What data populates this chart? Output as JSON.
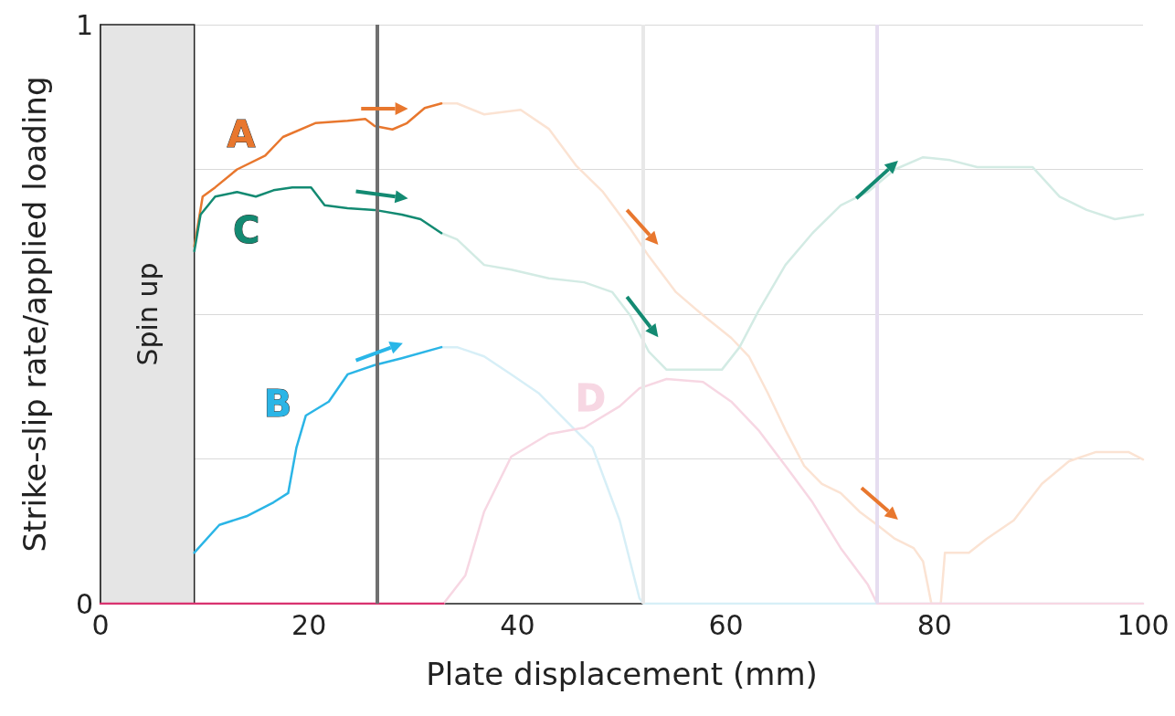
{
  "chart_data": {
    "type": "line",
    "xlabel": "Plate displacement (mm)",
    "ylabel": "Strike-slip rate/applied loading",
    "xlim": [
      0,
      100
    ],
    "xticks": [
      0,
      20,
      40,
      60,
      80,
      100
    ],
    "ylim": [
      0,
      1
    ],
    "yticks": [
      0,
      {
        "value": 0.25,
        "label": null
      },
      {
        "value": 0.5,
        "label": null
      },
      {
        "value": 0.75,
        "label": null
      },
      1
    ],
    "grid": "y",
    "legend": false,
    "marker": "none",
    "line_style": "solid",
    "bands": [
      {
        "axis": "x",
        "from": 0,
        "to": 9,
        "label": "Spin up",
        "color": "#e5e5e5"
      }
    ],
    "ref_lines": [
      {
        "axis": "x",
        "value": 26.5,
        "label": null,
        "color": "#707070"
      },
      {
        "axis": "x",
        "value": 52,
        "label": null,
        "color": "#e8e8e8"
      },
      {
        "axis": "x",
        "value": 74.5,
        "label": null,
        "color": "#e6ddf0"
      }
    ],
    "series": [
      {
        "color": "#fbe3d3",
        "x": [
          32.7,
          34.2,
          36.8,
          40.3,
          43,
          45.6,
          48.2,
          50.8,
          52.6,
          55.2,
          57.8,
          60.5,
          62.2,
          64,
          65.7,
          67.5,
          69.2,
          71,
          72.8,
          74.5,
          76.2,
          78,
          78.9,
          79.7,
          80.6,
          81,
          83.3,
          85,
          87.6,
          90.3,
          92.9,
          95.5,
          98.6,
          100
        ],
        "values": [
          0.864,
          0.864,
          0.845,
          0.853,
          0.82,
          0.757,
          0.711,
          0.648,
          0.6,
          0.538,
          0.498,
          0.459,
          0.427,
          0.364,
          0.3,
          0.238,
          0.207,
          0.191,
          0.159,
          0.136,
          0.112,
          0.096,
          0.073,
          0,
          0,
          0.088,
          0.088,
          0.112,
          0.144,
          0.207,
          0.246,
          0.262,
          0.262,
          0.249
        ]
      },
      {
        "color": "#d3ebe4",
        "x": [
          32.7,
          34.2,
          36.8,
          39.4,
          43,
          46.4,
          49.1,
          50.8,
          52.6,
          54.3,
          57,
          59.6,
          61.3,
          63.1,
          65.7,
          68.3,
          71,
          73.6,
          76.2,
          78.9,
          81.5,
          84.1,
          86.7,
          89.4,
          92,
          94.6,
          97.3,
          100
        ],
        "values": [
          0.64,
          0.629,
          0.585,
          0.577,
          0.562,
          0.555,
          0.538,
          0.498,
          0.435,
          0.404,
          0.404,
          0.404,
          0.443,
          0.505,
          0.585,
          0.64,
          0.688,
          0.711,
          0.75,
          0.771,
          0.766,
          0.754,
          0.754,
          0.754,
          0.703,
          0.68,
          0.664,
          0.672
        ]
      },
      {
        "color": "#d7eff7",
        "x": [
          32.7,
          34.2,
          36.8,
          39.4,
          42,
          44.6,
          47.2,
          49.8,
          51.7,
          52.1,
          100
        ],
        "values": [
          0.443,
          0.443,
          0.427,
          0.396,
          0.364,
          0.317,
          0.27,
          0.144,
          0.009,
          0,
          0
        ]
      },
      {
        "name": "D",
        "color": "#f7d7e3",
        "x": [
          32.9,
          35,
          36.8,
          39.4,
          43,
          46.4,
          49.8,
          51.7,
          54.3,
          57.8,
          60.5,
          63.1,
          65.7,
          68.3,
          71,
          73.6,
          74.5,
          100
        ],
        "values": [
          0,
          0.049,
          0.159,
          0.254,
          0.293,
          0.304,
          0.341,
          0.372,
          0.388,
          0.383,
          0.349,
          0.3,
          0.238,
          0.175,
          0.096,
          0.033,
          0,
          0
        ]
      },
      {
        "color": "#d9336f",
        "x": [
          0,
          32.9
        ],
        "values": [
          0,
          0
        ]
      },
      {
        "name": "A",
        "color": "#e8772e",
        "x": [
          9,
          9.8,
          11,
          13.1,
          15.8,
          17.5,
          20.6,
          23.7,
          25.4,
          26.3,
          28,
          29.4,
          31.1,
          32.7
        ],
        "values": [
          0.617,
          0.703,
          0.719,
          0.75,
          0.774,
          0.806,
          0.83,
          0.834,
          0.837,
          0.825,
          0.819,
          0.83,
          0.856,
          0.864
        ]
      },
      {
        "name": "C",
        "color": "#138a72",
        "x": [
          9,
          9.6,
          11,
          13.1,
          14.9,
          16.6,
          18.4,
          20.2,
          21.5,
          23.7,
          26.3,
          28.9,
          30.7,
          32.7
        ],
        "values": [
          0.609,
          0.672,
          0.703,
          0.711,
          0.703,
          0.714,
          0.719,
          0.719,
          0.688,
          0.683,
          0.68,
          0.672,
          0.664,
          0.64
        ]
      },
      {
        "name": "B",
        "color": "#2bb5e6",
        "x": [
          9,
          11.4,
          14,
          16.6,
          18,
          18.8,
          19.7,
          21.9,
          23.7,
          26.3,
          28.9,
          32.7
        ],
        "values": [
          0.088,
          0.136,
          0.151,
          0.175,
          0.191,
          0.27,
          0.325,
          0.349,
          0.396,
          0.412,
          0.424,
          0.443
        ]
      }
    ]
  }
}
